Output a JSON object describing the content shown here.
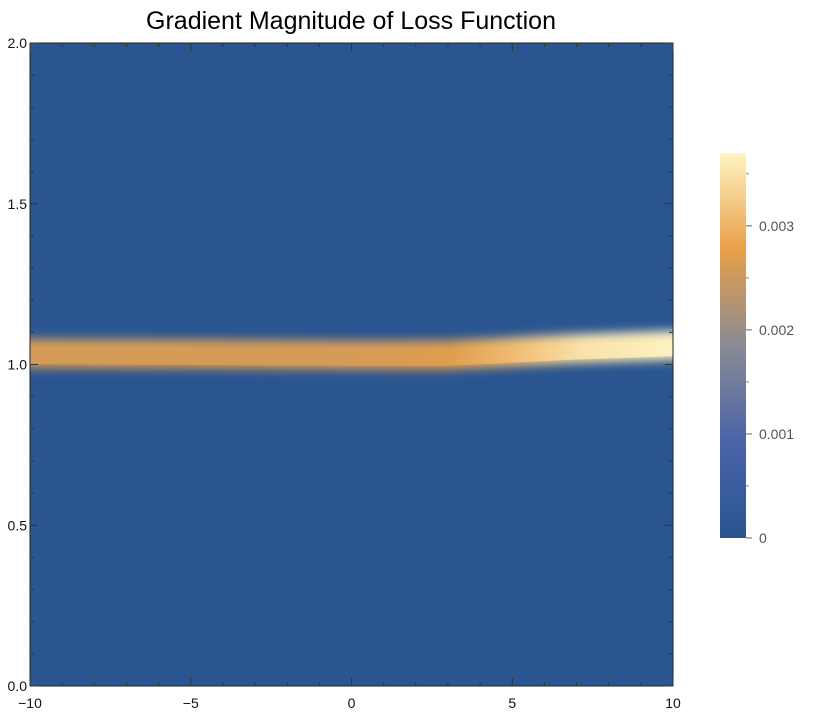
{
  "chart_data": {
    "type": "heatmap",
    "title": "Gradient Magnitude of Loss Function",
    "xlabel": "",
    "ylabel": "",
    "xlim": [
      -10,
      10
    ],
    "ylim": [
      0,
      2
    ],
    "x_ticks": [
      -10,
      -5,
      0,
      5,
      10
    ],
    "x_tick_labels": [
      "−10",
      "−5",
      "0",
      "5",
      "10"
    ],
    "y_ticks": [
      0,
      0.5,
      1,
      1.5,
      2
    ],
    "y_tick_labels": [
      "0.0",
      "0.5",
      "1.0",
      "1.5",
      "2.0"
    ],
    "colorbar": {
      "range": [
        0,
        0.0037
      ],
      "ticks": [
        0,
        0.001,
        0.002,
        0.003
      ],
      "tick_labels": [
        "0",
        "0.001",
        "0.002",
        "0.003"
      ],
      "colors": [
        "#2a5590",
        "#4a64a8",
        "#8a8a94",
        "#e8a048",
        "#fff4c4"
      ]
    },
    "ridge": {
      "description_values": "peak magnitude along y≈1.0, increasing toward x=10",
      "x": [
        -10,
        -5,
        0,
        3,
        5,
        7,
        10
      ],
      "y_center": [
        1.025,
        1.023,
        1.02,
        1.02,
        1.03,
        1.04,
        1.05
      ],
      "peak_value": [
        0.0026,
        0.0026,
        0.0026,
        0.0027,
        0.0031,
        0.0035,
        0.0037
      ]
    },
    "grid": false,
    "background_color": "#2a5590"
  }
}
